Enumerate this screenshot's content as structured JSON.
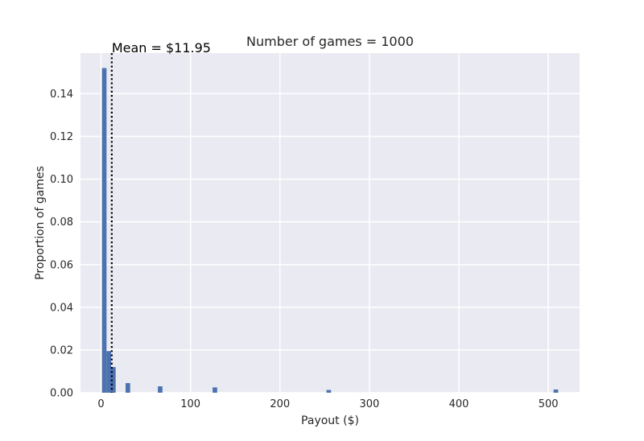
{
  "chart_data": {
    "type": "bar",
    "title": "Number of games = 1000",
    "xlabel": "Payout ($)",
    "ylabel": "Proportion of games",
    "xlim": [
      -23,
      535
    ],
    "ylim": [
      0,
      0.159
    ],
    "xticks": [
      0,
      100,
      200,
      300,
      400,
      500
    ],
    "xtick_labels": [
      "0",
      "100",
      "200",
      "300",
      "400",
      "500"
    ],
    "yticks": [
      0,
      0.02,
      0.04,
      0.06,
      0.08,
      0.1,
      0.12,
      0.14
    ],
    "ytick_labels": [
      "0.00",
      "0.02",
      "0.04",
      "0.06",
      "0.08",
      "0.10",
      "0.12",
      "0.14"
    ],
    "grid": true,
    "bins": [
      {
        "x0": 1,
        "x1": 6.1,
        "value": 0.152
      },
      {
        "x0": 6.1,
        "x1": 11.2,
        "value": 0.0195
      },
      {
        "x0": 11.2,
        "x1": 16.3,
        "value": 0.012
      },
      {
        "x0": 27.4,
        "x1": 32.5,
        "value": 0.0045
      },
      {
        "x0": 63.5,
        "x1": 68.6,
        "value": 0.003
      },
      {
        "x0": 124.7,
        "x1": 129.8,
        "value": 0.0025
      },
      {
        "x0": 252.0,
        "x1": 257.1,
        "value": 0.0013
      },
      {
        "x0": 505.9,
        "x1": 511.0,
        "value": 0.0015
      }
    ],
    "mean_line": {
      "x": 11.95,
      "label": "Mean = $11.95"
    },
    "colors": {
      "bar": "#4c72b0",
      "plot_background": "#eaeaf2",
      "grid": "#ffffff",
      "mean_line": "#000000"
    }
  }
}
